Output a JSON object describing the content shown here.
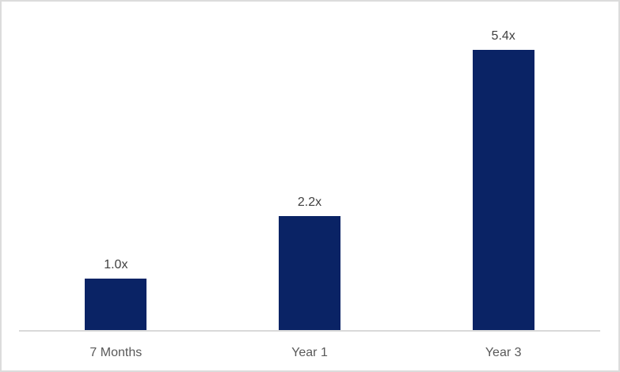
{
  "chart_data": {
    "type": "bar",
    "categories": [
      "7 Months",
      "Year 1",
      "Year 3"
    ],
    "values": [
      1.0,
      2.2,
      5.4
    ],
    "data_labels": [
      "1.0x",
      "2.2x",
      "5.4x"
    ],
    "title": "",
    "xlabel": "",
    "ylabel": "",
    "ylim": [
      0,
      6
    ],
    "grid": false,
    "legend": false,
    "axis_ticks_visible": false,
    "colors": {
      "bar": "#0A2365",
      "data_label": "#404040",
      "tick_label": "#595959",
      "axis_line": "#d9d9d9",
      "frame_border": "#dcdcdc",
      "background": "#ffffff"
    }
  }
}
